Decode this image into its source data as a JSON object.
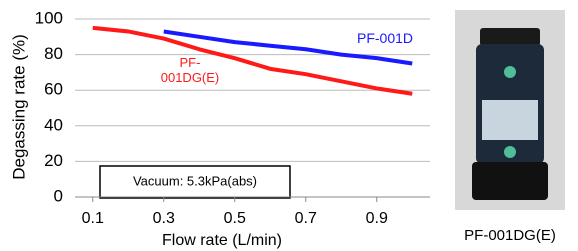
{
  "chart_data": {
    "type": "line",
    "y_label": "Degassing rate (%)",
    "x_label": "Flow rate (L/min)",
    "x": [
      0.1,
      0.2,
      0.3,
      0.4,
      0.5,
      0.6,
      0.7,
      0.8,
      0.9,
      1.0
    ],
    "series": [
      {
        "name": "PF-001D",
        "color": "#1a1aff",
        "values": [
          null,
          null,
          93,
          90,
          87,
          85,
          83,
          80,
          78,
          75
        ]
      },
      {
        "name": "PF-001DG(E)",
        "color": "#ff1a1a",
        "values": [
          95,
          93,
          89,
          83,
          78,
          72,
          69,
          65,
          61,
          58
        ]
      }
    ],
    "xlim": [
      0.05,
      1.05
    ],
    "xticks": [
      0.1,
      0.3,
      0.5,
      0.7,
      0.9
    ],
    "ylim": [
      0,
      100
    ],
    "yticks": [
      0,
      20,
      40,
      60,
      80,
      100
    ],
    "annotation": "Vacuum: 5.3kPa(abs)",
    "photo_caption": "PF-001DG(E)"
  }
}
